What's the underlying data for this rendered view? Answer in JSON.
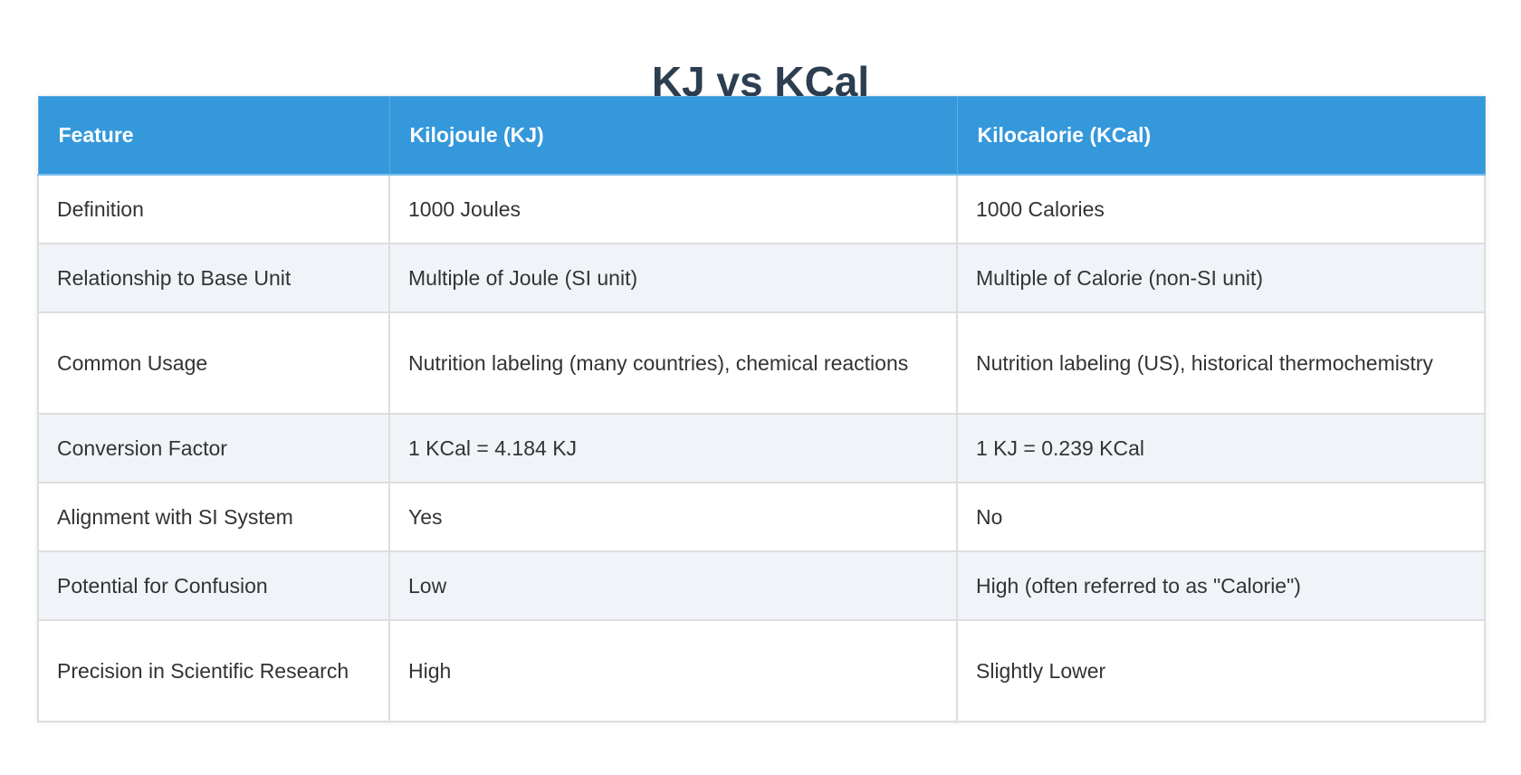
{
  "title": "KJ vs KCal",
  "colors": {
    "title": "#2c3e50",
    "header_bg": "#3498db",
    "header_text": "#ffffff",
    "row_alt_bg": "#f0f4f9",
    "border": "#dddddd"
  },
  "table": {
    "headers": [
      "Feature",
      "Kilojoule (KJ)",
      "Kilocalorie (KCal)"
    ],
    "rows": [
      [
        "Definition",
        "1000 Joules",
        "1000 Calories"
      ],
      [
        "Relationship to Base Unit",
        "Multiple of Joule (SI unit)",
        "Multiple of Calorie (non-SI unit)"
      ],
      [
        "Common Usage",
        "Nutrition labeling (many countries), chemical reactions",
        "Nutrition labeling (US), historical thermochemistry"
      ],
      [
        "Conversion Factor",
        "1 KCal = 4.184 KJ",
        "1 KJ = 0.239 KCal"
      ],
      [
        "Alignment with SI System",
        "Yes",
        "No"
      ],
      [
        "Potential for Confusion",
        "Low",
        "High (often referred to as \"Calorie\")"
      ],
      [
        "Precision in Scientific Research",
        "High",
        "Slightly Lower"
      ]
    ]
  }
}
